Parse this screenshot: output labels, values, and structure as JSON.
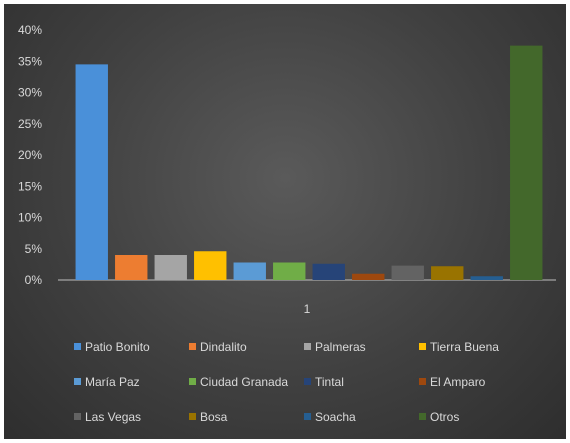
{
  "chart_data": {
    "type": "bar",
    "categories": [
      "1"
    ],
    "ylim": [
      0,
      40
    ],
    "y_ticks": [
      "0%",
      "5%",
      "10%",
      "15%",
      "20%",
      "25%",
      "30%",
      "35%",
      "40%"
    ],
    "grid": false,
    "legend_position": "bottom",
    "series": [
      {
        "name": "Patio Bonito",
        "values": [
          34.5
        ],
        "color": "#4a90d9"
      },
      {
        "name": "Dindalito",
        "values": [
          4.0
        ],
        "color": "#ed7d31"
      },
      {
        "name": "Palmeras",
        "values": [
          4.0
        ],
        "color": "#a5a5a5"
      },
      {
        "name": "Tierra Buena",
        "values": [
          4.6
        ],
        "color": "#ffc000"
      },
      {
        "name": "María Paz",
        "values": [
          2.8
        ],
        "color": "#5b9bd5"
      },
      {
        "name": "Ciudad Granada",
        "values": [
          2.8
        ],
        "color": "#70ad47"
      },
      {
        "name": "Tintal",
        "values": [
          2.6
        ],
        "color": "#264478"
      },
      {
        "name": "El Amparo",
        "values": [
          1.0
        ],
        "color": "#9e480e"
      },
      {
        "name": "Las Vegas",
        "values": [
          2.3
        ],
        "color": "#636363"
      },
      {
        "name": "Bosa",
        "values": [
          2.2
        ],
        "color": "#997300"
      },
      {
        "name": "Soacha",
        "values": [
          0.6
        ],
        "color": "#255e91"
      },
      {
        "name": "Otros",
        "values": [
          37.5
        ],
        "color": "#43682b"
      }
    ]
  }
}
